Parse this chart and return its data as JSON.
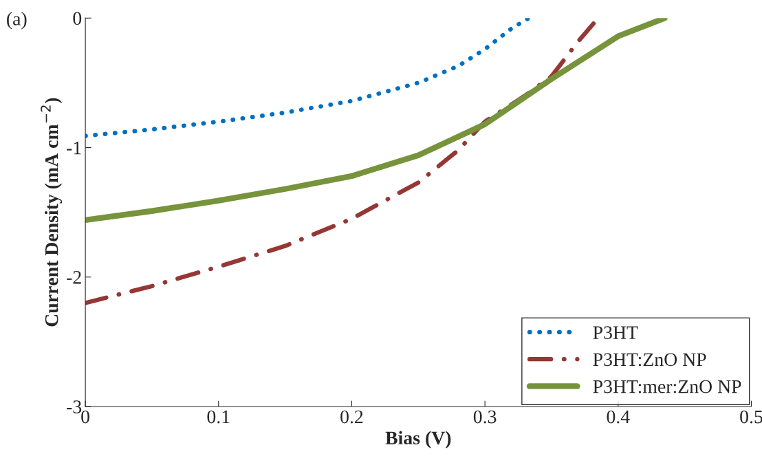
{
  "chart_data": {
    "type": "line",
    "xlabel": "Bias (V)",
    "ylabel": "Current Density (mA cm$^{−2}$)",
    "annotations": [
      "(a)"
    ],
    "xlim": [
      0,
      0.5
    ],
    "xticks": [
      {
        "value": 0,
        "label": "0"
      },
      0.1,
      0.2,
      0.3,
      0.4,
      0.5
    ],
    "ylim": [
      -3,
      0
    ],
    "yticks": [
      {
        "value": -3,
        "label": "-3"
      },
      {
        "value": -2,
        "label": "-2"
      },
      {
        "value": -1,
        "label": "-1"
      },
      0
    ],
    "grid": false,
    "legend": "bottom right",
    "series": [
      {
        "name": "P3HT",
        "color": "#0070c0",
        "line_style": "dotted",
        "x": [
          0,
          0.05,
          0.1,
          0.15,
          0.2,
          0.25,
          0.28,
          0.3,
          0.32,
          0.333
        ],
        "values": [
          -0.91,
          -0.86,
          -0.8,
          -0.73,
          -0.64,
          -0.5,
          -0.37,
          -0.24,
          -0.08,
          0
        ]
      },
      {
        "name": "P3HT:ZnO NP",
        "color": "#953735",
        "line_style": "dashdot",
        "x": [
          0,
          0.05,
          0.1,
          0.15,
          0.2,
          0.25,
          0.28,
          0.3,
          0.33,
          0.35,
          0.37,
          0.385
        ],
        "values": [
          -2.2,
          -2.07,
          -1.92,
          -1.76,
          -1.55,
          -1.27,
          -1.02,
          -0.8,
          -0.6,
          -0.45,
          -0.18,
          0
        ]
      },
      {
        "name": "P3HT:mer:ZnO NP",
        "color": "#77933c",
        "line_style": "solid",
        "x": [
          0,
          0.05,
          0.1,
          0.15,
          0.2,
          0.25,
          0.3,
          0.35,
          0.4,
          0.435
        ],
        "values": [
          -1.56,
          -1.49,
          -1.41,
          -1.32,
          -1.22,
          -1.06,
          -0.82,
          -0.47,
          -0.14,
          0
        ]
      }
    ]
  }
}
